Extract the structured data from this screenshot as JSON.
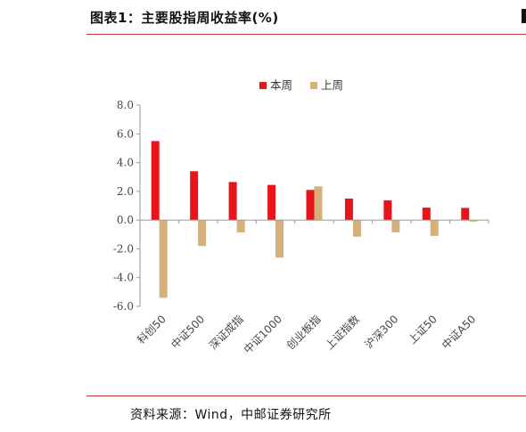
{
  "header": {
    "title": "图表1：主要股指周收益率(%)"
  },
  "footer": {
    "source": "资料来源：Wind，中邮证券研究所"
  },
  "colors": {
    "accent": "#c0392b",
    "series_current": "#e8141c",
    "series_previous": "#d6b07a"
  },
  "chart_data": {
    "type": "bar",
    "title": "",
    "xlabel": "",
    "ylabel": "",
    "categories": [
      "科创50",
      "中证500",
      "深证成指",
      "中证1000",
      "创业板指",
      "上证指数",
      "沪深300",
      "上证50",
      "中证A50"
    ],
    "series": [
      {
        "name": "本周",
        "values": [
          5.5,
          3.4,
          2.65,
          2.45,
          2.1,
          1.5,
          1.38,
          0.87,
          0.85
        ]
      },
      {
        "name": "上周",
        "values": [
          -5.4,
          -1.8,
          -0.85,
          -2.6,
          2.35,
          -1.15,
          -0.85,
          -1.1,
          -0.1
        ]
      }
    ],
    "ylim": [
      -6.0,
      8.0
    ],
    "yticks": [
      8.0,
      6.0,
      4.0,
      2.0,
      0.0,
      -2.0,
      -4.0,
      -6.0
    ],
    "ytick_labels": [
      "8.0",
      "6.0",
      "4.0",
      "2.0",
      "0.0",
      "-2.0",
      "-4.0",
      "-6.0"
    ],
    "grid": false,
    "legend": "top-center"
  }
}
